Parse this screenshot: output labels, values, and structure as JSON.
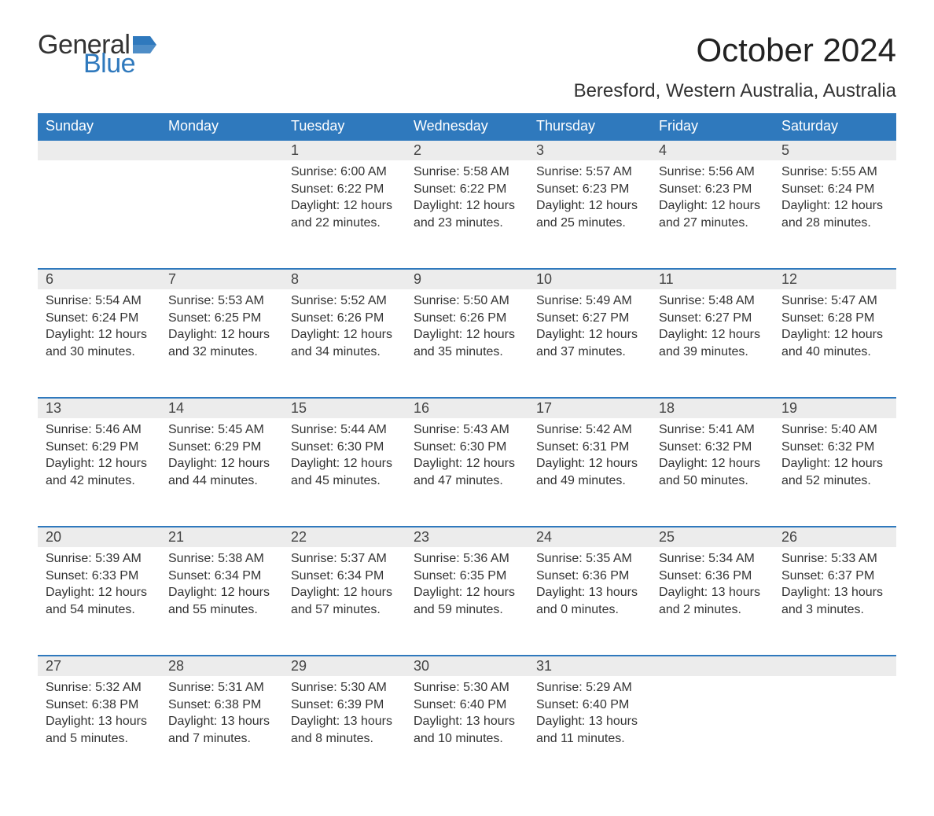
{
  "brand": {
    "word1": "General",
    "word2": "Blue",
    "accent_color": "#2f79bd"
  },
  "title": "October 2024",
  "subtitle": "Beresford, Western Australia, Australia",
  "day_headers": [
    "Sunday",
    "Monday",
    "Tuesday",
    "Wednesday",
    "Thursday",
    "Friday",
    "Saturday"
  ],
  "colors": {
    "header_bg": "#2f79bd",
    "header_text": "#ffffff",
    "daynum_bg": "#ececec",
    "daynum_border": "#2f79bd",
    "body_text": "#333333",
    "page_bg": "#ffffff"
  },
  "fonts": {
    "title_size_pt": 32,
    "subtitle_size_pt": 18,
    "header_size_pt": 14,
    "body_size_pt": 12
  },
  "weeks": [
    [
      null,
      null,
      {
        "n": "1",
        "sunrise": "Sunrise: 6:00 AM",
        "sunset": "Sunset: 6:22 PM",
        "day1": "Daylight: 12 hours",
        "day2": "and 22 minutes."
      },
      {
        "n": "2",
        "sunrise": "Sunrise: 5:58 AM",
        "sunset": "Sunset: 6:22 PM",
        "day1": "Daylight: 12 hours",
        "day2": "and 23 minutes."
      },
      {
        "n": "3",
        "sunrise": "Sunrise: 5:57 AM",
        "sunset": "Sunset: 6:23 PM",
        "day1": "Daylight: 12 hours",
        "day2": "and 25 minutes."
      },
      {
        "n": "4",
        "sunrise": "Sunrise: 5:56 AM",
        "sunset": "Sunset: 6:23 PM",
        "day1": "Daylight: 12 hours",
        "day2": "and 27 minutes."
      },
      {
        "n": "5",
        "sunrise": "Sunrise: 5:55 AM",
        "sunset": "Sunset: 6:24 PM",
        "day1": "Daylight: 12 hours",
        "day2": "and 28 minutes."
      }
    ],
    [
      {
        "n": "6",
        "sunrise": "Sunrise: 5:54 AM",
        "sunset": "Sunset: 6:24 PM",
        "day1": "Daylight: 12 hours",
        "day2": "and 30 minutes."
      },
      {
        "n": "7",
        "sunrise": "Sunrise: 5:53 AM",
        "sunset": "Sunset: 6:25 PM",
        "day1": "Daylight: 12 hours",
        "day2": "and 32 minutes."
      },
      {
        "n": "8",
        "sunrise": "Sunrise: 5:52 AM",
        "sunset": "Sunset: 6:26 PM",
        "day1": "Daylight: 12 hours",
        "day2": "and 34 minutes."
      },
      {
        "n": "9",
        "sunrise": "Sunrise: 5:50 AM",
        "sunset": "Sunset: 6:26 PM",
        "day1": "Daylight: 12 hours",
        "day2": "and 35 minutes."
      },
      {
        "n": "10",
        "sunrise": "Sunrise: 5:49 AM",
        "sunset": "Sunset: 6:27 PM",
        "day1": "Daylight: 12 hours",
        "day2": "and 37 minutes."
      },
      {
        "n": "11",
        "sunrise": "Sunrise: 5:48 AM",
        "sunset": "Sunset: 6:27 PM",
        "day1": "Daylight: 12 hours",
        "day2": "and 39 minutes."
      },
      {
        "n": "12",
        "sunrise": "Sunrise: 5:47 AM",
        "sunset": "Sunset: 6:28 PM",
        "day1": "Daylight: 12 hours",
        "day2": "and 40 minutes."
      }
    ],
    [
      {
        "n": "13",
        "sunrise": "Sunrise: 5:46 AM",
        "sunset": "Sunset: 6:29 PM",
        "day1": "Daylight: 12 hours",
        "day2": "and 42 minutes."
      },
      {
        "n": "14",
        "sunrise": "Sunrise: 5:45 AM",
        "sunset": "Sunset: 6:29 PM",
        "day1": "Daylight: 12 hours",
        "day2": "and 44 minutes."
      },
      {
        "n": "15",
        "sunrise": "Sunrise: 5:44 AM",
        "sunset": "Sunset: 6:30 PM",
        "day1": "Daylight: 12 hours",
        "day2": "and 45 minutes."
      },
      {
        "n": "16",
        "sunrise": "Sunrise: 5:43 AM",
        "sunset": "Sunset: 6:30 PM",
        "day1": "Daylight: 12 hours",
        "day2": "and 47 minutes."
      },
      {
        "n": "17",
        "sunrise": "Sunrise: 5:42 AM",
        "sunset": "Sunset: 6:31 PM",
        "day1": "Daylight: 12 hours",
        "day2": "and 49 minutes."
      },
      {
        "n": "18",
        "sunrise": "Sunrise: 5:41 AM",
        "sunset": "Sunset: 6:32 PM",
        "day1": "Daylight: 12 hours",
        "day2": "and 50 minutes."
      },
      {
        "n": "19",
        "sunrise": "Sunrise: 5:40 AM",
        "sunset": "Sunset: 6:32 PM",
        "day1": "Daylight: 12 hours",
        "day2": "and 52 minutes."
      }
    ],
    [
      {
        "n": "20",
        "sunrise": "Sunrise: 5:39 AM",
        "sunset": "Sunset: 6:33 PM",
        "day1": "Daylight: 12 hours",
        "day2": "and 54 minutes."
      },
      {
        "n": "21",
        "sunrise": "Sunrise: 5:38 AM",
        "sunset": "Sunset: 6:34 PM",
        "day1": "Daylight: 12 hours",
        "day2": "and 55 minutes."
      },
      {
        "n": "22",
        "sunrise": "Sunrise: 5:37 AM",
        "sunset": "Sunset: 6:34 PM",
        "day1": "Daylight: 12 hours",
        "day2": "and 57 minutes."
      },
      {
        "n": "23",
        "sunrise": "Sunrise: 5:36 AM",
        "sunset": "Sunset: 6:35 PM",
        "day1": "Daylight: 12 hours",
        "day2": "and 59 minutes."
      },
      {
        "n": "24",
        "sunrise": "Sunrise: 5:35 AM",
        "sunset": "Sunset: 6:36 PM",
        "day1": "Daylight: 13 hours",
        "day2": "and 0 minutes."
      },
      {
        "n": "25",
        "sunrise": "Sunrise: 5:34 AM",
        "sunset": "Sunset: 6:36 PM",
        "day1": "Daylight: 13 hours",
        "day2": "and 2 minutes."
      },
      {
        "n": "26",
        "sunrise": "Sunrise: 5:33 AM",
        "sunset": "Sunset: 6:37 PM",
        "day1": "Daylight: 13 hours",
        "day2": "and 3 minutes."
      }
    ],
    [
      {
        "n": "27",
        "sunrise": "Sunrise: 5:32 AM",
        "sunset": "Sunset: 6:38 PM",
        "day1": "Daylight: 13 hours",
        "day2": "and 5 minutes."
      },
      {
        "n": "28",
        "sunrise": "Sunrise: 5:31 AM",
        "sunset": "Sunset: 6:38 PM",
        "day1": "Daylight: 13 hours",
        "day2": "and 7 minutes."
      },
      {
        "n": "29",
        "sunrise": "Sunrise: 5:30 AM",
        "sunset": "Sunset: 6:39 PM",
        "day1": "Daylight: 13 hours",
        "day2": "and 8 minutes."
      },
      {
        "n": "30",
        "sunrise": "Sunrise: 5:30 AM",
        "sunset": "Sunset: 6:40 PM",
        "day1": "Daylight: 13 hours",
        "day2": "and 10 minutes."
      },
      {
        "n": "31",
        "sunrise": "Sunrise: 5:29 AM",
        "sunset": "Sunset: 6:40 PM",
        "day1": "Daylight: 13 hours",
        "day2": "and 11 minutes."
      },
      null,
      null
    ]
  ]
}
